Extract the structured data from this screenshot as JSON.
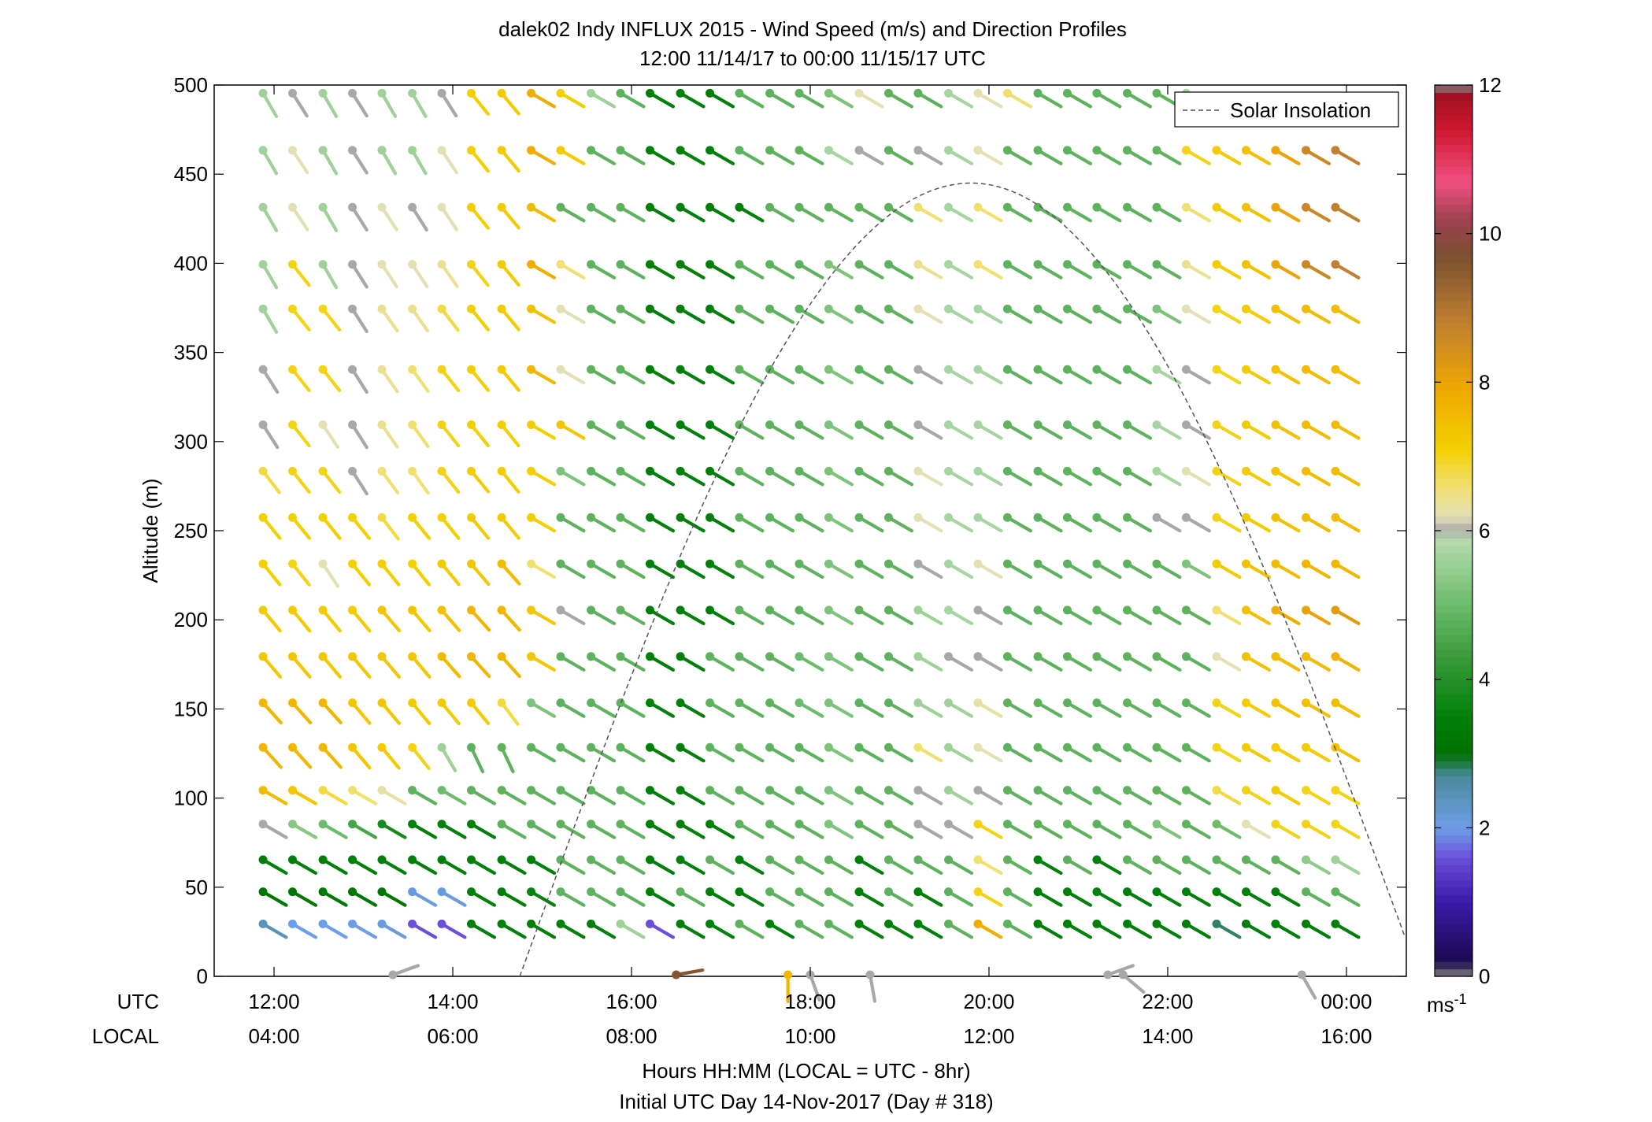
{
  "chart_data": {
    "type": "wind-barb-profile",
    "title": "dalek02 Indy INFLUX 2015 - Wind Speed (m/s) and Direction Profiles",
    "subtitle": "12:00 11/14/17 to 00:00 11/15/17  UTC",
    "ylabel": "Altitude (m)",
    "xlabel": "Hours HH:MM  (LOCAL = UTC - 8hr)",
    "xlabel2": "Initial UTC Day 14-Nov-2017 (Day # 318)",
    "utc_row_label": "UTC",
    "local_row_label": "LOCAL",
    "ylim": [
      0,
      500
    ],
    "yticks": [
      "0",
      "50",
      "100",
      "150",
      "200",
      "250",
      "300",
      "350",
      "400",
      "450",
      "500"
    ],
    "xlim_hours": [
      11.33,
      24.67
    ],
    "xtick_hours": [
      12,
      14,
      16,
      18,
      20,
      22,
      24
    ],
    "utc_tick_labels": [
      "12:00",
      "14:00",
      "16:00",
      "18:00",
      "20:00",
      "22:00",
      "00:00"
    ],
    "local_tick_labels": [
      "04:00",
      "06:00",
      "08:00",
      "10:00",
      "12:00",
      "14:00",
      "16:00"
    ],
    "legend": {
      "label": "Solar Insolation",
      "placement": "top-right"
    },
    "solar_insolation": {
      "start_hour": 14.75,
      "peak_hour": 19.8,
      "peak_altitude": 445,
      "end_hour": 24.67,
      "end_altitude": 20
    },
    "colorbar": {
      "range": [
        0,
        12
      ],
      "ticks": [
        "0",
        "2",
        "4",
        "6",
        "8",
        "10",
        "12"
      ],
      "unit": "ms",
      "unit_exponent": "-1",
      "stops": [
        {
          "v": 0.0,
          "c": "#808080"
        },
        {
          "v": 0.2,
          "c": "#1a0a50"
        },
        {
          "v": 1.0,
          "c": "#3a1aa8"
        },
        {
          "v": 1.6,
          "c": "#6a50d8"
        },
        {
          "v": 2.0,
          "c": "#6f9ee8"
        },
        {
          "v": 2.7,
          "c": "#4a8a9a"
        },
        {
          "v": 3.0,
          "c": "#007000"
        },
        {
          "v": 3.5,
          "c": "#00800a"
        },
        {
          "v": 4.3,
          "c": "#3a9a3a"
        },
        {
          "v": 5.0,
          "c": "#6cbc6c"
        },
        {
          "v": 5.9,
          "c": "#b8dcb0"
        },
        {
          "v": 6.0,
          "c": "#a8a8a8"
        },
        {
          "v": 6.2,
          "c": "#e4e0b4"
        },
        {
          "v": 6.6,
          "c": "#f0e070"
        },
        {
          "v": 7.1,
          "c": "#f2d000"
        },
        {
          "v": 7.9,
          "c": "#f0a800"
        },
        {
          "v": 8.8,
          "c": "#c08030"
        },
        {
          "v": 9.7,
          "c": "#7a5030"
        },
        {
          "v": 10.2,
          "c": "#a04050"
        },
        {
          "v": 10.7,
          "c": "#f05080"
        },
        {
          "v": 11.4,
          "c": "#d01830"
        },
        {
          "v": 11.85,
          "c": "#a01020"
        },
        {
          "v": 12.0,
          "c": "#808080"
        }
      ]
    },
    "level_altitudes": [
      25,
      43,
      61,
      81,
      100,
      124,
      149,
      175,
      201,
      227,
      253,
      279,
      305,
      336,
      370,
      395,
      427,
      459,
      491
    ],
    "time_hours": [
      12.0,
      12.33,
      12.67,
      13.0,
      13.33,
      13.67,
      14.0,
      14.33,
      14.67,
      15.0,
      15.33,
      15.67,
      16.0,
      16.33,
      16.67,
      17.0,
      17.33,
      17.67,
      18.0,
      18.33,
      18.67,
      19.0,
      19.33,
      19.67,
      20.0,
      20.33,
      20.67,
      21.0,
      21.33,
      21.67,
      22.0,
      22.33,
      22.67,
      23.0,
      23.33,
      23.67,
      24.0
    ],
    "direction_regimes_deg": [
      {
        "until_hour": 14.5,
        "above_alt": 100,
        "dir": 330,
        "below_dir": 300
      },
      {
        "until_hour": 24.5,
        "above_alt": 0,
        "dir": 300,
        "below_dir": 300
      }
    ],
    "speed_grid_ms": [
      [
        2.4,
        2.0,
        2.0,
        2.0,
        2.1,
        1.6,
        1.6,
        3.5,
        3.5,
        3.5,
        3.5,
        3.5,
        5.6,
        1.6,
        3.5,
        3.5,
        4.8,
        3.5,
        4.8,
        4.8,
        3.5,
        3.5,
        3.5,
        4.8,
        7.8,
        4.8,
        3.5,
        3.5,
        3.5,
        3.5,
        3.5,
        3.5,
        2.8,
        3.5,
        3.5,
        3.5,
        3.5
      ],
      [
        3.2,
        3.2,
        3.2,
        3.2,
        3.2,
        2.1,
        2.1,
        3.5,
        3.5,
        3.6,
        4.8,
        4.8,
        4.8,
        3.5,
        4.8,
        3.5,
        3.5,
        4.8,
        4.8,
        4.8,
        3.5,
        4.8,
        3.5,
        4.8,
        7.0,
        4.8,
        3.5,
        3.5,
        3.5,
        3.5,
        3.5,
        3.5,
        3.5,
        3.5,
        3.5,
        4.8,
        4.8
      ],
      [
        3.5,
        3.5,
        3.5,
        3.5,
        3.5,
        3.5,
        3.5,
        3.5,
        3.5,
        3.5,
        4.8,
        4.8,
        4.8,
        3.5,
        3.5,
        4.8,
        3.5,
        4.8,
        4.8,
        4.8,
        3.5,
        4.8,
        4.8,
        4.8,
        6.6,
        4.8,
        3.5,
        4.8,
        3.5,
        4.8,
        4.8,
        4.8,
        4.8,
        4.8,
        4.8,
        5.4,
        5.6
      ],
      [
        6.0,
        5.3,
        5.0,
        4.5,
        3.8,
        3.5,
        3.5,
        3.5,
        4.8,
        4.8,
        4.8,
        4.8,
        4.8,
        3.5,
        3.5,
        3.5,
        4.8,
        4.8,
        4.8,
        5.2,
        4.8,
        4.8,
        6.0,
        6.0,
        7.0,
        4.8,
        4.8,
        4.8,
        4.8,
        4.8,
        5.2,
        4.8,
        5.0,
        6.2,
        7.0,
        7.0,
        7.0
      ],
      [
        7.5,
        7.3,
        6.8,
        6.6,
        6.3,
        4.8,
        5.0,
        4.8,
        4.8,
        4.8,
        4.8,
        4.8,
        4.8,
        3.5,
        3.5,
        4.8,
        4.8,
        4.8,
        4.8,
        5.2,
        4.8,
        4.8,
        6.0,
        5.6,
        6.0,
        4.8,
        4.8,
        4.8,
        4.8,
        4.8,
        4.8,
        4.8,
        6.8,
        7.0,
        7.2,
        7.0,
        7.0
      ],
      [
        7.6,
        7.6,
        7.6,
        7.3,
        7.2,
        7.0,
        5.6,
        4.8,
        4.8,
        4.8,
        4.8,
        4.8,
        4.8,
        3.5,
        3.5,
        4.8,
        4.8,
        4.8,
        4.8,
        5.2,
        4.8,
        4.8,
        6.6,
        5.6,
        6.2,
        4.8,
        4.8,
        4.8,
        4.8,
        4.8,
        4.8,
        4.8,
        7.0,
        7.2,
        7.2,
        7.2,
        7.4
      ],
      [
        7.6,
        7.6,
        7.6,
        7.3,
        7.3,
        7.2,
        7.2,
        7.2,
        6.8,
        5.2,
        4.8,
        4.8,
        4.8,
        3.5,
        3.5,
        4.8,
        4.8,
        4.8,
        5.0,
        5.2,
        4.8,
        4.8,
        5.6,
        5.6,
        6.3,
        4.8,
        4.8,
        4.8,
        4.8,
        4.8,
        4.8,
        4.8,
        7.0,
        7.2,
        7.4,
        7.4,
        7.5
      ],
      [
        7.3,
        7.3,
        7.3,
        7.3,
        7.3,
        7.3,
        7.5,
        7.6,
        7.6,
        7.3,
        4.8,
        4.8,
        4.8,
        3.5,
        3.5,
        4.8,
        4.8,
        4.8,
        5.0,
        5.2,
        4.8,
        4.8,
        5.6,
        6.0,
        6.0,
        4.8,
        4.8,
        4.8,
        4.8,
        4.8,
        4.8,
        4.8,
        6.2,
        7.4,
        7.5,
        7.5,
        7.7
      ],
      [
        7.2,
        7.2,
        7.2,
        7.2,
        7.3,
        7.3,
        7.4,
        7.6,
        7.6,
        7.3,
        6.0,
        4.8,
        4.8,
        3.5,
        3.5,
        3.5,
        4.8,
        4.8,
        4.8,
        5.2,
        4.8,
        4.8,
        5.6,
        5.7,
        6.0,
        4.8,
        4.8,
        4.8,
        4.8,
        4.8,
        4.8,
        4.8,
        6.6,
        7.4,
        7.8,
        8.0,
        8.2
      ],
      [
        7.1,
        7.0,
        6.2,
        7.1,
        7.1,
        7.1,
        7.2,
        7.3,
        7.5,
        6.6,
        4.8,
        4.8,
        4.8,
        3.5,
        3.5,
        3.5,
        4.8,
        4.8,
        4.8,
        5.2,
        4.8,
        4.8,
        6.0,
        5.7,
        6.2,
        4.8,
        4.8,
        4.8,
        4.8,
        4.8,
        4.8,
        5.2,
        7.2,
        7.4,
        7.5,
        7.6,
        7.6
      ],
      [
        7.1,
        7.1,
        7.1,
        7.1,
        6.8,
        7.1,
        7.1,
        7.2,
        7.2,
        7.1,
        4.8,
        4.8,
        4.8,
        3.5,
        3.5,
        3.5,
        4.8,
        4.8,
        4.8,
        5.2,
        4.8,
        4.8,
        6.2,
        5.7,
        5.7,
        4.8,
        4.8,
        4.8,
        4.8,
        4.8,
        6.0,
        6.0,
        7.0,
        7.2,
        7.4,
        7.5,
        7.5
      ],
      [
        6.8,
        7.0,
        7.0,
        6.0,
        6.6,
        6.6,
        7.0,
        7.2,
        7.1,
        7.1,
        5.2,
        4.8,
        4.8,
        3.5,
        3.5,
        3.5,
        4.8,
        4.8,
        4.8,
        5.2,
        4.8,
        4.8,
        6.2,
        5.7,
        5.7,
        4.8,
        4.8,
        4.8,
        4.8,
        4.8,
        5.7,
        6.2,
        7.0,
        7.2,
        7.4,
        7.5,
        7.5
      ],
      [
        6.0,
        7.0,
        6.2,
        6.0,
        6.4,
        6.6,
        7.0,
        7.1,
        7.1,
        7.1,
        7.3,
        4.8,
        4.8,
        3.5,
        3.5,
        3.5,
        4.8,
        4.8,
        4.8,
        5.2,
        4.8,
        4.8,
        6.0,
        5.7,
        5.7,
        4.8,
        4.8,
        4.8,
        4.8,
        4.8,
        5.7,
        6.0,
        7.0,
        7.2,
        7.4,
        7.5,
        7.5
      ],
      [
        6.0,
        7.0,
        7.0,
        6.0,
        6.4,
        6.6,
        7.0,
        7.1,
        7.2,
        7.6,
        6.2,
        4.8,
        4.8,
        3.5,
        3.5,
        3.5,
        4.8,
        4.8,
        4.8,
        5.2,
        4.8,
        4.8,
        6.0,
        5.7,
        5.7,
        4.8,
        4.8,
        4.8,
        4.8,
        4.8,
        5.7,
        6.0,
        7.0,
        7.2,
        7.4,
        7.5,
        7.5
      ],
      [
        5.6,
        7.0,
        7.0,
        6.0,
        6.4,
        6.4,
        6.8,
        7.1,
        7.2,
        7.4,
        6.2,
        4.8,
        4.8,
        3.5,
        3.5,
        3.5,
        4.8,
        4.8,
        4.8,
        5.2,
        4.8,
        4.8,
        6.2,
        5.7,
        5.7,
        4.8,
        4.8,
        4.8,
        4.8,
        4.8,
        5.2,
        6.2,
        7.0,
        7.2,
        7.4,
        7.5,
        7.5
      ],
      [
        5.6,
        7.0,
        5.6,
        6.0,
        6.2,
        6.2,
        6.4,
        7.0,
        7.2,
        7.8,
        6.6,
        4.8,
        4.8,
        3.5,
        3.5,
        3.5,
        4.8,
        4.8,
        4.8,
        5.2,
        4.8,
        4.8,
        6.4,
        5.7,
        6.6,
        4.8,
        4.8,
        4.8,
        4.8,
        4.8,
        4.8,
        6.4,
        7.2,
        7.4,
        8.0,
        8.6,
        8.8
      ],
      [
        5.6,
        6.2,
        5.6,
        6.0,
        6.2,
        6.0,
        6.2,
        7.1,
        7.2,
        7.5,
        4.8,
        4.8,
        4.8,
        3.5,
        3.5,
        3.5,
        3.5,
        4.8,
        4.8,
        4.8,
        4.8,
        4.8,
        6.6,
        5.7,
        6.6,
        4.8,
        4.8,
        4.8,
        4.8,
        4.8,
        4.8,
        6.6,
        7.2,
        7.4,
        8.0,
        8.6,
        8.8
      ],
      [
        5.6,
        6.2,
        5.6,
        6.0,
        5.6,
        5.6,
        6.2,
        7.1,
        7.2,
        7.8,
        7.2,
        4.8,
        4.8,
        3.5,
        3.5,
        3.5,
        4.8,
        4.8,
        4.8,
        5.7,
        6.0,
        4.8,
        6.0,
        5.7,
        6.2,
        4.8,
        4.8,
        4.8,
        4.8,
        4.8,
        4.8,
        7.0,
        7.2,
        7.4,
        8.0,
        8.6,
        8.8
      ],
      [
        5.6,
        6.0,
        5.6,
        6.0,
        5.6,
        5.6,
        6.0,
        7.1,
        7.2,
        7.8,
        7.1,
        5.6,
        4.8,
        3.5,
        3.5,
        3.5,
        4.8,
        4.8,
        4.8,
        5.2,
        6.2,
        4.8,
        4.8,
        5.7,
        6.2,
        6.6,
        4.8,
        4.8,
        4.8,
        4.8,
        4.8,
        5.7,
        0,
        0,
        0,
        0,
        0
      ]
    ],
    "surface_barbs": [
      {
        "hour": 13.33,
        "speed": 6.0,
        "dir": 250
      },
      {
        "hour": 16.5,
        "speed": 9.6,
        "dir": 260
      },
      {
        "hour": 17.75,
        "speed": 7.6,
        "dir": 0
      },
      {
        "hour": 18.0,
        "speed": 6.0,
        "dir": 340
      },
      {
        "hour": 18.67,
        "speed": 6.0,
        "dir": 350
      },
      {
        "hour": 21.33,
        "speed": 6.0,
        "dir": 250
      },
      {
        "hour": 21.5,
        "speed": 6.0,
        "dir": 310
      },
      {
        "hour": 23.5,
        "speed": 6.0,
        "dir": 330
      }
    ]
  }
}
